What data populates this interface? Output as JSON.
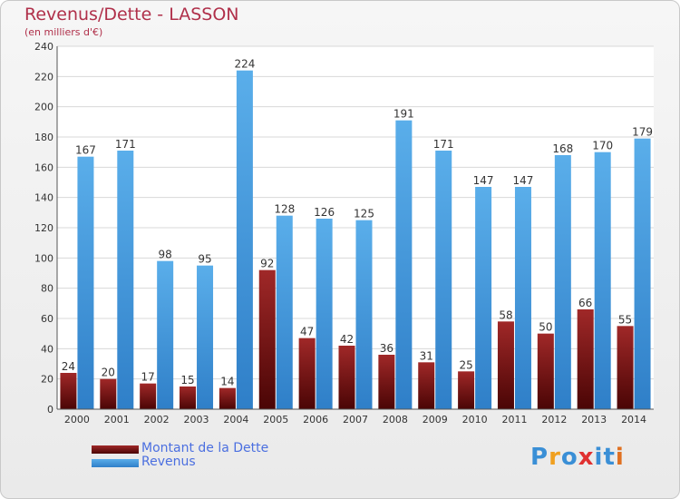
{
  "chart_data": {
    "type": "bar",
    "title": "Revenus/Dette - LASSON",
    "subtitle": "(en milliers d'€)",
    "categories": [
      "2000",
      "2001",
      "2002",
      "2003",
      "2004",
      "2005",
      "2006",
      "2007",
      "2008",
      "2009",
      "2010",
      "2011",
      "2012",
      "2013",
      "2014"
    ],
    "series": [
      {
        "name": "Montant de la Dette",
        "color": "#7a1010",
        "values": [
          24,
          20,
          17,
          15,
          14,
          92,
          47,
          42,
          36,
          31,
          25,
          58,
          50,
          66,
          55
        ]
      },
      {
        "name": "Revenus",
        "color": "#3f95dd",
        "values": [
          167,
          171,
          98,
          95,
          224,
          128,
          126,
          125,
          191,
          171,
          147,
          147,
          168,
          170,
          179
        ]
      }
    ],
    "ylim": [
      0,
      240
    ],
    "yticks": [
      0,
      20,
      40,
      60,
      80,
      100,
      120,
      140,
      160,
      180,
      200,
      220,
      240
    ],
    "grid": true,
    "legend": "bottom-left"
  },
  "logo": {
    "letters": [
      "P",
      "r",
      "o",
      "x",
      "i",
      "t",
      "i"
    ],
    "colors": [
      "#3a8fd6",
      "#f0a020",
      "#3a8fd6",
      "#e03030",
      "#3a8fd6",
      "#3a8fd6",
      "#e07020"
    ]
  }
}
